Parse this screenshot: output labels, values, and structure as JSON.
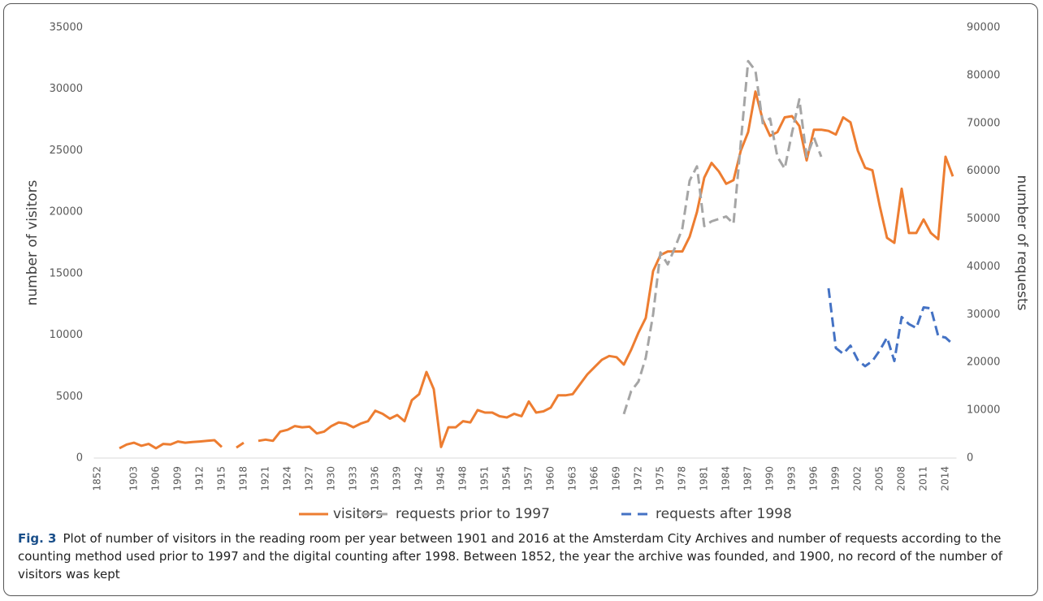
{
  "chart_data": {
    "type": "line",
    "y_label": "number of visitors",
    "y2_label": "number of requests",
    "caption": {
      "label": "Fig. 3",
      "text": "Plot of number of visitors in the reading room per year between 1901 and 2016 at the Amsterdam City Archives and number of requests according to the counting method used prior to 1997 and the digital counting after 1998. Between 1852, the year the archive was founded, and 1900, no record of the number of visitors was kept"
    },
    "legend": "bottom",
    "grid": false,
    "ylim": [
      0,
      35000
    ],
    "yticks": [
      0,
      5000,
      10000,
      15000,
      20000,
      25000,
      30000,
      35000
    ],
    "y2lim": [
      0,
      90000
    ],
    "y2ticks": [
      0,
      10000,
      20000,
      30000,
      40000,
      50000,
      60000,
      70000,
      80000,
      90000
    ],
    "categories": [
      "1852",
      null,
      null,
      null,
      null,
      "1903",
      null,
      null,
      "1906",
      null,
      null,
      "1909",
      null,
      null,
      "1912",
      null,
      null,
      "1915",
      null,
      null,
      "1918",
      null,
      null,
      "1921",
      null,
      null,
      "1924",
      null,
      null,
      "1927",
      null,
      null,
      "1930",
      null,
      null,
      "1933",
      null,
      null,
      "1936",
      null,
      null,
      "1939",
      null,
      null,
      "1942",
      null,
      null,
      "1945",
      null,
      null,
      "1948",
      null,
      null,
      "1951",
      null,
      null,
      "1954",
      null,
      null,
      "1957",
      null,
      null,
      "1960",
      null,
      null,
      "1963",
      null,
      null,
      "1966",
      null,
      null,
      "1969",
      null,
      null,
      "1972",
      null,
      null,
      "1975",
      null,
      null,
      "1978",
      null,
      null,
      "1981",
      null,
      null,
      "1984",
      null,
      null,
      "1987",
      null,
      null,
      "1990",
      null,
      null,
      "1993",
      null,
      null,
      "1996",
      null,
      null,
      "1999",
      null,
      null,
      "2002",
      null,
      null,
      "2005",
      null,
      null,
      "2008",
      null,
      null,
      "2011",
      null,
      null,
      "2014",
      null
    ],
    "series": [
      {
        "name": "visitors",
        "color": "#ed7d31",
        "dash": false,
        "values": [
          null,
          null,
          null,
          800,
          1100,
          1250,
          1000,
          1150,
          800,
          1150,
          1100,
          1350,
          1250,
          1300,
          1350,
          1400,
          1450,
          900,
          null,
          850,
          1250,
          null,
          1400,
          1500,
          1400,
          2150,
          2300,
          2600,
          2500,
          2550,
          2000,
          2150,
          2600,
          2900,
          2800,
          2500,
          2800,
          3000,
          3850,
          3600,
          3200,
          3500,
          3000,
          4700,
          5200,
          7000,
          5600,
          900,
          2500,
          2500,
          3000,
          2900,
          3900,
          3700,
          3700,
          3400,
          3300,
          3600,
          3400,
          4600,
          3700,
          3800,
          4100,
          5100,
          5100,
          5200,
          6000,
          6800,
          7400,
          8000,
          8300,
          8200,
          7600,
          8800,
          10200,
          11400,
          15200,
          16500,
          16800,
          16800,
          16800,
          18000,
          20000,
          22800,
          24000,
          23300,
          22300,
          22600,
          25000,
          26500,
          29800,
          27500,
          26200,
          26500,
          27700,
          27800,
          27000,
          24200,
          26700,
          26700,
          26600,
          26300,
          27700,
          27300,
          25000,
          23600,
          23400,
          20500,
          17900,
          17500,
          21900,
          18300,
          18300,
          19400,
          18300,
          17800,
          24500,
          22900
        ]
      },
      {
        "name": "requests prior to 1997",
        "color": "#a5a5a5",
        "dash": true,
        "axis": "y2",
        "values": [
          null,
          null,
          null,
          null,
          null,
          null,
          null,
          null,
          null,
          null,
          null,
          null,
          null,
          null,
          null,
          null,
          null,
          null,
          null,
          null,
          null,
          null,
          null,
          null,
          null,
          null,
          null,
          null,
          null,
          null,
          null,
          null,
          null,
          null,
          null,
          null,
          null,
          null,
          null,
          null,
          null,
          null,
          null,
          null,
          null,
          null,
          null,
          null,
          null,
          null,
          null,
          null,
          null,
          null,
          null,
          null,
          null,
          null,
          null,
          null,
          null,
          null,
          null,
          null,
          null,
          null,
          null,
          null,
          null,
          null,
          null,
          null,
          9200,
          14000,
          16000,
          21000,
          30000,
          43000,
          40500,
          44000,
          48000,
          58000,
          61000,
          48500,
          49500,
          50000,
          50500,
          49000,
          66000,
          83000,
          81000,
          70000,
          71000,
          63000,
          60500,
          68000,
          75000,
          63000,
          67000,
          63000,
          null,
          null,
          null,
          null,
          null,
          null,
          null,
          null,
          null,
          null,
          null,
          null,
          null,
          null,
          null,
          null,
          null,
          null
        ]
      },
      {
        "name": "requests after 1998",
        "color": "#4472c4",
        "dash": true,
        "axis": "y2",
        "values": [
          null,
          null,
          null,
          null,
          null,
          null,
          null,
          null,
          null,
          null,
          null,
          null,
          null,
          null,
          null,
          null,
          null,
          null,
          null,
          null,
          null,
          null,
          null,
          null,
          null,
          null,
          null,
          null,
          null,
          null,
          null,
          null,
          null,
          null,
          null,
          null,
          null,
          null,
          null,
          null,
          null,
          null,
          null,
          null,
          null,
          null,
          null,
          null,
          null,
          null,
          null,
          null,
          null,
          null,
          null,
          null,
          null,
          null,
          null,
          null,
          null,
          null,
          null,
          null,
          null,
          null,
          null,
          null,
          null,
          null,
          null,
          null,
          null,
          null,
          null,
          null,
          null,
          null,
          null,
          null,
          null,
          null,
          null,
          null,
          null,
          null,
          null,
          null,
          null,
          null,
          null,
          null,
          null,
          null,
          null,
          null,
          null,
          null,
          null,
          null,
          35500,
          23000,
          21800,
          23500,
          20500,
          19200,
          20300,
          22500,
          25200,
          20300,
          29500,
          28000,
          27200,
          31500,
          31300,
          25500,
          25200,
          23800
        ]
      }
    ]
  }
}
